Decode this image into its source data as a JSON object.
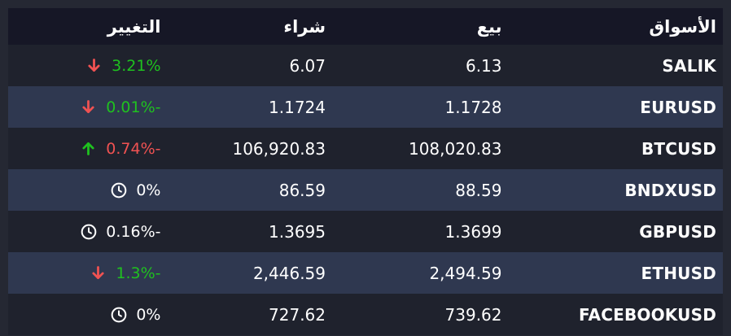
{
  "colors": {
    "page_bg": "#252833",
    "header_bg": "#161726",
    "row_bg": "#1f222d",
    "row_alt_bg": "#2f3850",
    "text": "#ffffff",
    "green": "#1fc11f",
    "red": "#f05252"
  },
  "table": {
    "columns": [
      {
        "key": "market",
        "label": "الأسواق"
      },
      {
        "key": "sell",
        "label": "بيع"
      },
      {
        "key": "buy",
        "label": "شراء"
      },
      {
        "key": "change",
        "label": "التغيير"
      }
    ],
    "rows": [
      {
        "market": "SALIK",
        "sell": "6.13",
        "buy": "6.07",
        "change": "3.21%",
        "change_color": "green",
        "icon": "arrow-down",
        "icon_color": "red"
      },
      {
        "market": "EURUSD",
        "sell": "1.1728",
        "buy": "1.1724",
        "change": "0.01%-",
        "change_color": "green",
        "icon": "arrow-down",
        "icon_color": "red"
      },
      {
        "market": "BTCUSD",
        "sell": "108,020.83",
        "buy": "106,920.83",
        "change": "0.74%-",
        "change_color": "red",
        "icon": "arrow-up",
        "icon_color": "green"
      },
      {
        "market": "BNDXUSD",
        "sell": "88.59",
        "buy": "86.59",
        "change": "0%",
        "change_color": "white",
        "icon": "clock",
        "icon_color": "white"
      },
      {
        "market": "GBPUSD",
        "sell": "1.3699",
        "buy": "1.3695",
        "change": "0.16%-",
        "change_color": "white",
        "icon": "clock",
        "icon_color": "white"
      },
      {
        "market": "ETHUSD",
        "sell": "2,494.59",
        "buy": "2,446.59",
        "change": "1.3%-",
        "change_color": "green",
        "icon": "arrow-down",
        "icon_color": "red"
      },
      {
        "market": "FACEBOOKUSD",
        "sell": "739.62",
        "buy": "727.62",
        "change": "0%",
        "change_color": "white",
        "icon": "clock",
        "icon_color": "white"
      }
    ]
  }
}
